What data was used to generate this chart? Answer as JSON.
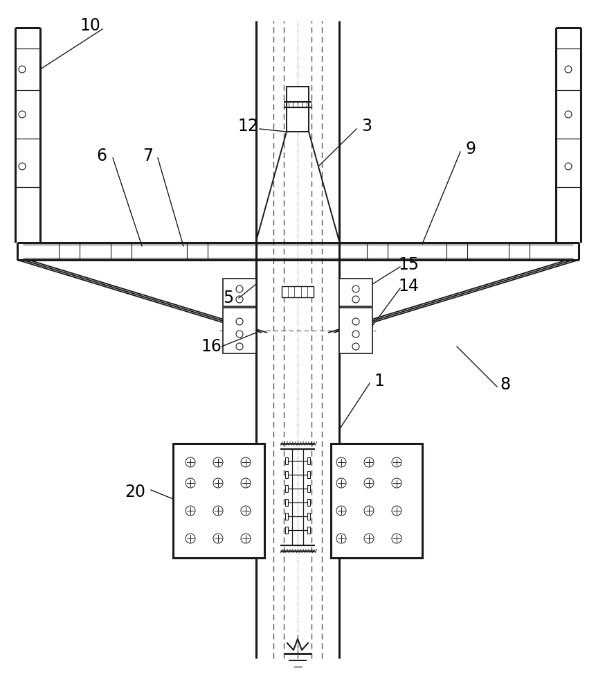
{
  "bg_color": "#ffffff",
  "line_color": "#1a1a1a",
  "dashed_color": "#555555",
  "label_color": "#000000",
  "label_fontsize": 17,
  "figsize": [
    8.61,
    10.0
  ],
  "dpi": 100
}
